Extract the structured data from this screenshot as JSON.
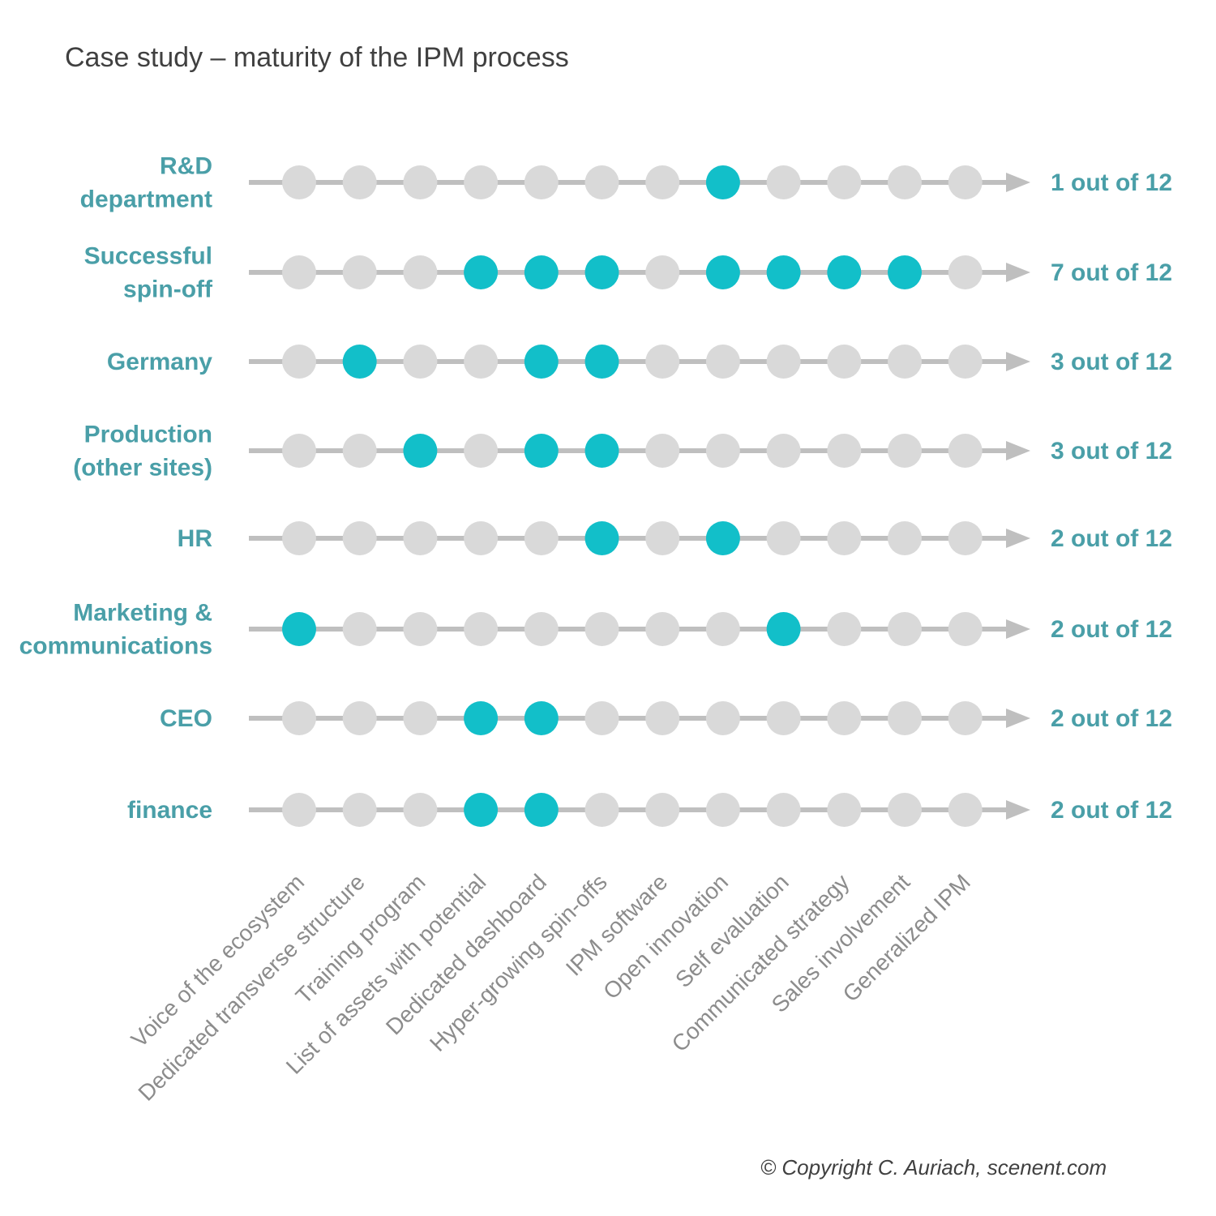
{
  "title": "Case study – maturity of the IPM process",
  "copyright": "© Copyright C. Auriach, scenent.com",
  "colors": {
    "achieved": "#12BFC9",
    "not_achieved": "#D9D9D9",
    "axis": "#BFBFBF",
    "label": "#4A9FA8",
    "step_label": "#8C8C8C"
  },
  "chart_data": {
    "type": "dot-matrix",
    "steps": [
      "Voice of the ecosystem",
      "Dedicated transverse structure",
      "Training program",
      "List of assets with potential",
      "Dedicated dashboard",
      "Hyper-growing spin-offs",
      "IPM software",
      "Open innovation",
      "Self evaluation",
      "Communicated strategy",
      "Sales involvement",
      "Generalized IPM"
    ],
    "rows": [
      {
        "label": [
          "R&D",
          "department"
        ],
        "achieved": [
          8
        ],
        "score": "1 out of 12"
      },
      {
        "label": [
          "Successful",
          "spin-off"
        ],
        "achieved": [
          4,
          5,
          6,
          8,
          9,
          10,
          11
        ],
        "score": "7 out of 12"
      },
      {
        "label": [
          "Germany"
        ],
        "achieved": [
          2,
          5,
          6
        ],
        "score": "3 out of 12"
      },
      {
        "label": [
          "Production",
          "(other sites)"
        ],
        "achieved": [
          3,
          5,
          6
        ],
        "score": "3 out of 12"
      },
      {
        "label": [
          "HR"
        ],
        "achieved": [
          6,
          8
        ],
        "score": "2 out of 12"
      },
      {
        "label": [
          "Marketing &",
          "communications"
        ],
        "achieved": [
          1,
          9
        ],
        "score": "2 out of 12"
      },
      {
        "label": [
          "CEO"
        ],
        "achieved": [
          4,
          5
        ],
        "score": "2 out of 12"
      },
      {
        "label": [
          "finance"
        ],
        "achieved": [
          4,
          5
        ],
        "score": "2 out of 12"
      }
    ]
  }
}
